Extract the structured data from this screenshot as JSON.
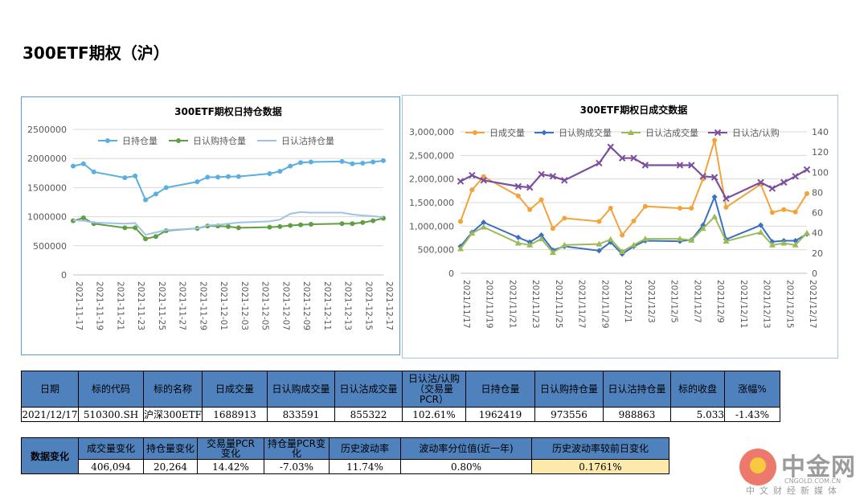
{
  "page": {
    "title": "300ETF期权（沪）"
  },
  "chart_data": [
    {
      "type": "line",
      "title": "300ETF期权日持仓数据",
      "categories": [
        "2021-11-17",
        "2021-11-18",
        "2021-11-19",
        "2021-11-22",
        "2021-11-23",
        "2021-11-24",
        "2021-11-25",
        "2021-11-26",
        "2021-11-29",
        "2021-11-30",
        "2021-12-01",
        "2021-12-02",
        "2021-12-03",
        "2021-12-06",
        "2021-12-07",
        "2021-12-08",
        "2021-12-09",
        "2021-12-10",
        "2021-12-13",
        "2021-12-14",
        "2021-12-15",
        "2021-12-16",
        "2021-12-17"
      ],
      "x_tick_labels": [
        "2021-11-17",
        "2021-11-19",
        "2021-11-21",
        "2021-11-23",
        "2021-11-25",
        "2021-11-27",
        "2021-11-29",
        "2021-12-01",
        "2021-12-03",
        "2021-12-05",
        "2021-12-07",
        "2021-12-09",
        "2021-12-11",
        "2021-12-13",
        "2021-12-15",
        "2021-12-17"
      ],
      "x_ticks": [
        "2021-11-17",
        "2021-11-19",
        "2021-11-21",
        "2021-11-23",
        "2021-11-25",
        "2021-11-27",
        "2021-11-29",
        "2021-12-01",
        "2021-12-03",
        "2021-12-05",
        "2021-12-07",
        "2021-12-09",
        "2021-12-11",
        "2021-12-13",
        "2021-12-15",
        "2021-12-17"
      ],
      "ylim": [
        0,
        2500000
      ],
      "y_ticks": [
        0,
        500000,
        1000000,
        1500000,
        2000000,
        2500000
      ],
      "y_tick_labels": [
        "0",
        "500000",
        "1000000",
        "1500000",
        "2000000",
        "2500000"
      ],
      "grid": true,
      "legend": "top",
      "series": [
        {
          "name": "日持仓量",
          "color": "#5aaee0",
          "marker": true,
          "values": [
            1870000,
            1910000,
            1770000,
            1670000,
            1700000,
            1290000,
            1390000,
            1500000,
            1600000,
            1680000,
            1680000,
            1690000,
            1690000,
            1740000,
            1780000,
            1870000,
            1930000,
            1940000,
            1950000,
            1910000,
            1920000,
            1940000,
            1962419
          ]
        },
        {
          "name": "日认购持仓量",
          "color": "#5f9e45",
          "marker": true,
          "values": [
            930000,
            980000,
            880000,
            810000,
            810000,
            620000,
            660000,
            760000,
            800000,
            840000,
            840000,
            830000,
            810000,
            820000,
            830000,
            850000,
            860000,
            870000,
            880000,
            880000,
            900000,
            930000,
            973556
          ]
        },
        {
          "name": "日认沽持仓量",
          "color": "#9dc3e6",
          "marker": false,
          "values": [
            940000,
            930000,
            900000,
            880000,
            890000,
            690000,
            730000,
            770000,
            800000,
            850000,
            860000,
            880000,
            900000,
            920000,
            950000,
            1050000,
            1080000,
            1070000,
            1070000,
            1040000,
            1020000,
            1010000,
            988863
          ]
        }
      ]
    },
    {
      "type": "line",
      "title": "300ETF期权日成交数据",
      "categories": [
        "2021/11/17",
        "2021/11/18",
        "2021/11/19",
        "2021/11/22",
        "2021/11/23",
        "2021/11/24",
        "2021/11/25",
        "2021/11/26",
        "2021/11/29",
        "2021/11/30",
        "2021/12/1",
        "2021/12/2",
        "2021/12/3",
        "2021/12/6",
        "2021/12/7",
        "2021/12/8",
        "2021/12/9",
        "2021/12/10",
        "2021/12/13",
        "2021/12/14",
        "2021/12/15",
        "2021/12/16",
        "2021/12/17"
      ],
      "x_tick_labels": [
        "2021/11/17",
        "2021/11/19",
        "2021/11/21",
        "2021/11/23",
        "2021/11/25",
        "2021/11/27",
        "2021/11/29",
        "2021/12/1",
        "2021/12/3",
        "2021/12/5",
        "2021/12/7",
        "2021/12/9",
        "2021/12/11",
        "2021/12/13",
        "2021/12/15",
        "2021/12/17"
      ],
      "x_ticks": [
        "2021/11/17",
        "2021/11/19",
        "2021/11/21",
        "2021/11/23",
        "2021/11/25",
        "2021/11/27",
        "2021/11/29",
        "2021/12/1",
        "2021/12/3",
        "2021/12/5",
        "2021/12/7",
        "2021/12/9",
        "2021/12/11",
        "2021/12/13",
        "2021/12/15",
        "2021/12/17"
      ],
      "ylim": [
        0,
        3000000
      ],
      "y_ticks": [
        0,
        500000,
        1000000,
        1500000,
        2000000,
        2500000,
        3000000
      ],
      "y_tick_labels": [
        "0",
        "500,000",
        "1,000,000",
        "1,500,000",
        "2,000,000",
        "2,500,000",
        "3,000,000"
      ],
      "y2lim": [
        0,
        140
      ],
      "y2_ticks": [
        0,
        20,
        40,
        60,
        80,
        100,
        120,
        140
      ],
      "y2_tick_labels": [
        "0",
        "20",
        "40",
        "60",
        "80",
        "100",
        "120",
        "140"
      ],
      "grid": true,
      "legend": "top",
      "series": [
        {
          "name": "日成交量",
          "color": "#f4a23b",
          "axis": "left",
          "marker": "circle",
          "values": [
            1100000,
            1770000,
            2050000,
            1640000,
            1350000,
            1560000,
            950000,
            1170000,
            1100000,
            1380000,
            810000,
            1110000,
            1420000,
            1380000,
            1380000,
            2000000,
            2820000,
            1400000,
            1890000,
            1290000,
            1350000,
            1300000,
            1688913
          ]
        },
        {
          "name": "日认购成交量",
          "color": "#3a6fc1",
          "axis": "left",
          "marker": "diamond",
          "values": [
            570000,
            870000,
            1080000,
            760000,
            660000,
            810000,
            490000,
            570000,
            480000,
            660000,
            410000,
            570000,
            690000,
            680000,
            710000,
            1020000,
            1620000,
            720000,
            1020000,
            670000,
            690000,
            690000,
            833591
          ]
        },
        {
          "name": "日认沽成交量",
          "color": "#9bbb59",
          "axis": "left",
          "marker": "triangle",
          "values": [
            520000,
            850000,
            980000,
            640000,
            600000,
            730000,
            440000,
            600000,
            620000,
            720000,
            460000,
            600000,
            730000,
            730000,
            700000,
            950000,
            1200000,
            680000,
            870000,
            600000,
            640000,
            600000,
            855322
          ]
        },
        {
          "name": "日认沽/认购",
          "color": "#7b4f9d",
          "axis": "right",
          "marker": "x",
          "values": [
            91,
            97,
            92,
            86,
            85,
            98,
            96,
            92,
            109,
            125,
            114,
            114,
            107,
            107,
            107,
            96,
            95,
            74,
            90,
            84,
            90,
            96,
            102.61
          ]
        }
      ]
    }
  ],
  "table1": {
    "headers": [
      "日期",
      "标的代码",
      "标的名称",
      "日成交量",
      "日认购成交量",
      "日认沽成交量",
      "日认沽/认购\n（交易量\nPCR）",
      "日持仓量",
      "日认购持仓量",
      "日认沽持仓量",
      "标的收盘",
      "涨幅%"
    ],
    "values": [
      "2021/12/17",
      "510300.SH",
      "沪深300ETF",
      "1688913",
      "833591",
      "855322",
      "102.61%",
      "1962419",
      "973556",
      "988863",
      "5.033",
      "-1.43%"
    ]
  },
  "table2": {
    "lead": "数据变化",
    "headers": [
      "成交量变化",
      "持仓量变化",
      "交易量PCR\n变化",
      "持仓量PCR变\n化",
      "历史波动率",
      "波动率分位值(近一年)",
      "历史波动率较前日变化"
    ],
    "values": [
      "406,094",
      "20,264",
      "14.42%",
      "-7.03%",
      "11.74%",
      "0.80%",
      "0.1761%"
    ]
  },
  "watermark": {
    "cn": "中金网",
    "en": "CNGOLD.COM.CN",
    "sub": "中文财经新媒体"
  }
}
